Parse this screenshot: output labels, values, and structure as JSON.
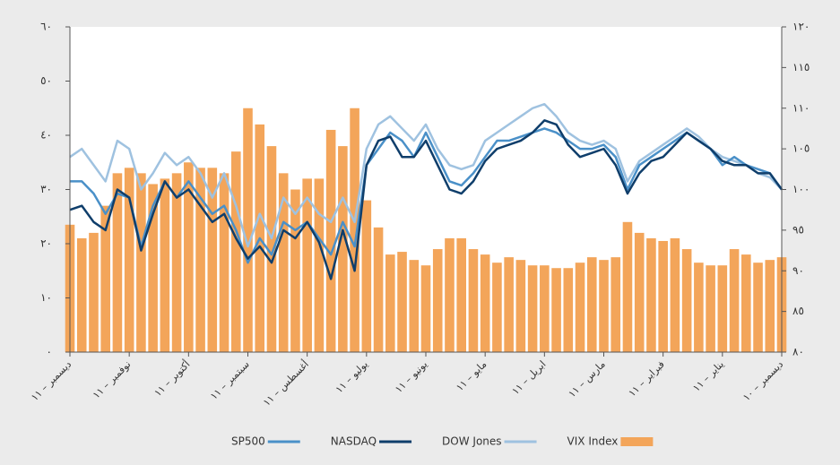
{
  "chart_data": {
    "type": "line_bar",
    "categories": [
      "ديسمبر – ١١",
      null,
      null,
      null,
      null,
      "نوفمبر – ١١",
      null,
      null,
      null,
      null,
      "أكتوبر – ١١",
      null,
      null,
      null,
      null,
      "سبتمبر – ١١",
      null,
      null,
      null,
      null,
      "أغسطس – ١١",
      null,
      null,
      null,
      null,
      "يوليو – ١١",
      null,
      null,
      null,
      null,
      "يونيو – ١١",
      null,
      null,
      null,
      null,
      "مايو – ١١",
      null,
      null,
      null,
      null,
      "ابريل – ١١",
      null,
      null,
      null,
      null,
      "مارس – ١١",
      null,
      null,
      null,
      null,
      "فبراير – ١١",
      null,
      null,
      null,
      null,
      "يناير – ١١",
      null,
      null,
      null,
      null,
      "ديسمبر – ١٠"
    ],
    "series": [
      {
        "name": "SP500",
        "color": "#4a90c8",
        "axis": "y2",
        "kind": "line",
        "values": [
          101,
          101,
          99.5,
          97,
          99.5,
          99,
          93,
          98,
          101,
          99,
          101,
          99,
          97,
          98,
          95,
          91,
          94,
          92,
          96,
          95,
          96,
          94,
          92,
          96,
          93,
          103,
          105,
          107,
          106,
          104,
          107,
          104,
          101,
          100.5,
          102,
          104,
          106,
          106,
          106.5,
          107,
          107.5,
          107,
          106,
          105,
          105,
          105.5,
          104,
          100,
          103,
          104,
          105,
          106,
          107,
          106,
          105,
          103,
          104,
          103,
          102.5,
          102,
          100
        ]
      },
      {
        "name": "NASDAQ",
        "color": "#0f3e6b",
        "axis": "y2",
        "kind": "line",
        "values": [
          97.5,
          98,
          96,
          95,
          100,
          99,
          92.5,
          97,
          101,
          99,
          100,
          98,
          96,
          97,
          94,
          91.5,
          93,
          91,
          95,
          94,
          96,
          93.5,
          89,
          95,
          90,
          103,
          106,
          106.5,
          104,
          104,
          106,
          103,
          100,
          99.5,
          101,
          103.5,
          105,
          105.5,
          106,
          107,
          108.5,
          108,
          105.5,
          104,
          104.5,
          105,
          103,
          99.5,
          102,
          103.5,
          104,
          105.5,
          107,
          106,
          105,
          103.5,
          103,
          103,
          102,
          102,
          100
        ]
      },
      {
        "name": "DOW Jones",
        "color": "#9fc2e0",
        "axis": "y2",
        "kind": "line",
        "values": [
          104,
          105,
          103,
          101,
          106,
          105,
          100,
          102,
          104.5,
          103,
          104,
          102,
          99,
          102,
          98,
          93,
          97,
          94,
          99,
          97,
          99,
          97,
          96,
          99,
          96,
          105,
          108,
          109,
          107.5,
          106,
          108,
          105,
          103,
          102.5,
          103,
          106,
          107,
          108,
          109,
          110,
          110.5,
          109,
          107,
          106,
          105.5,
          106,
          105,
          101,
          103.5,
          104.5,
          105.5,
          106.5,
          107.5,
          106.5,
          105,
          104,
          103.5,
          103,
          102,
          101.5,
          100
        ]
      },
      {
        "name": "VIX Index",
        "color": "#f3a55a",
        "axis": "y",
        "kind": "bar",
        "values": [
          23.5,
          21,
          22,
          27,
          33,
          34,
          33,
          31,
          32,
          33,
          35,
          34,
          34,
          33,
          37,
          45,
          42,
          38,
          33,
          30,
          32,
          32,
          41,
          38,
          45,
          28,
          23,
          18,
          18.5,
          17,
          16,
          19,
          21,
          21,
          19,
          18,
          16.5,
          17.5,
          17,
          16,
          16,
          15.5,
          15.5,
          16.5,
          17.5,
          17,
          17.5,
          24,
          22,
          21,
          20.5,
          21,
          19,
          16.5,
          16,
          16,
          19,
          18,
          16.5,
          17,
          17.5
        ]
      }
    ],
    "ylim": [
      0,
      60
    ],
    "yticks": [
      {
        "value": 0,
        "label": "٠"
      },
      {
        "value": 10,
        "label": "١٠"
      },
      {
        "value": 20,
        "label": "٢٠"
      },
      {
        "value": 30,
        "label": "٣٠"
      },
      {
        "value": 40,
        "label": "٤٠"
      },
      {
        "value": 50,
        "label": "٥٠"
      },
      {
        "value": 60,
        "label": "٦٠"
      }
    ],
    "y2lim": [
      80,
      120
    ],
    "y2ticks": [
      {
        "value": 80,
        "label": "٨٠"
      },
      {
        "value": 85,
        "label": "٨٥"
      },
      {
        "value": 90,
        "label": "٩٠"
      },
      {
        "value": 95,
        "label": "٩٥"
      },
      {
        "value": 100,
        "label": "١٠٠"
      },
      {
        "value": 105,
        "label": "١٠٥"
      },
      {
        "value": 110,
        "label": "١١٠"
      },
      {
        "value": 115,
        "label": "١١٥"
      },
      {
        "value": 120,
        "label": "١٢٠"
      }
    ],
    "legend": "bottom"
  }
}
